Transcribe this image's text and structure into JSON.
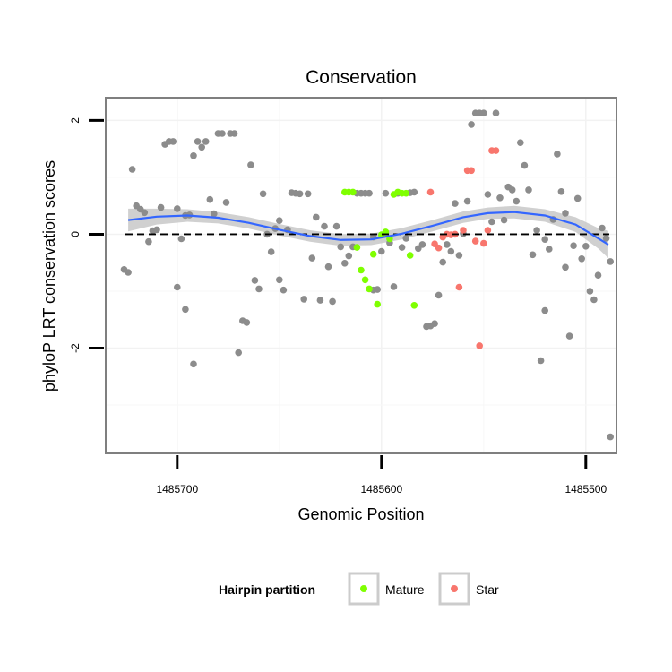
{
  "chart_data": {
    "type": "scatter",
    "title": "Conservation",
    "xlabel": "Genomic Position",
    "ylabel": "phyloP LRT conservation scores",
    "x_reversed": true,
    "xlim": [
      1485735,
      1485485
    ],
    "ylim": [
      -3.85,
      2.4
    ],
    "x_ticks": [
      1485700,
      1485600,
      1485500
    ],
    "x_tick_labels": [
      "1485700",
      "1485600",
      "1485500"
    ],
    "y_ticks": [
      -2,
      0,
      2
    ],
    "y_tick_labels": [
      "-2",
      "0",
      "2"
    ],
    "grid": true,
    "reference_line": {
      "y": 0,
      "style": "dashed",
      "color": "#000000"
    },
    "legend": {
      "title": "Hairpin partition",
      "placement": "bottom",
      "entries": [
        {
          "name": "Mature",
          "color": "#7FFF00"
        },
        {
          "name": "Star",
          "color": "#F8766D"
        }
      ]
    },
    "other_color": "#8C8C8C",
    "smooth": {
      "color": "#3366FF",
      "band_color": "#C8C8C8",
      "points": [
        [
          1485724,
          0.25
        ],
        [
          1485710,
          0.31
        ],
        [
          1485695,
          0.33
        ],
        [
          1485680,
          0.29
        ],
        [
          1485665,
          0.2
        ],
        [
          1485650,
          0.08
        ],
        [
          1485635,
          -0.03
        ],
        [
          1485620,
          -0.1
        ],
        [
          1485605,
          -0.09
        ],
        [
          1485590,
          0.01
        ],
        [
          1485575,
          0.15
        ],
        [
          1485560,
          0.3
        ],
        [
          1485548,
          0.37
        ],
        [
          1485535,
          0.39
        ],
        [
          1485520,
          0.33
        ],
        [
          1485505,
          0.17
        ],
        [
          1485494,
          -0.07
        ],
        [
          1485489,
          -0.18
        ]
      ],
      "band_halfwidth": [
        0.2,
        0.14,
        0.11,
        0.1,
        0.1,
        0.1,
        0.1,
        0.1,
        0.1,
        0.1,
        0.1,
        0.1,
        0.1,
        0.11,
        0.11,
        0.13,
        0.18,
        0.24
      ]
    },
    "series": [
      {
        "group": "Other",
        "points": [
          [
            1485726,
            -0.62
          ],
          [
            1485724,
            -0.67
          ],
          [
            1485722,
            1.14
          ],
          [
            1485720,
            0.5
          ],
          [
            1485718,
            0.44
          ],
          [
            1485716,
            0.38
          ],
          [
            1485714,
            -0.13
          ],
          [
            1485712,
            0.06
          ],
          [
            1485710,
            0.08
          ],
          [
            1485708,
            0.47
          ],
          [
            1485706,
            1.58
          ],
          [
            1485704,
            1.63
          ],
          [
            1485702,
            1.63
          ],
          [
            1485700,
            0.45
          ],
          [
            1485698,
            -0.08
          ],
          [
            1485696,
            0.33
          ],
          [
            1485694,
            0.34
          ],
          [
            1485692,
            1.38
          ],
          [
            1485690,
            1.63
          ],
          [
            1485688,
            1.53
          ],
          [
            1485686,
            1.63
          ],
          [
            1485684,
            0.61
          ],
          [
            1485682,
            0.36
          ],
          [
            1485680,
            1.77
          ],
          [
            1485678,
            1.77
          ],
          [
            1485676,
            0.56
          ],
          [
            1485674,
            1.77
          ],
          [
            1485672,
            1.77
          ],
          [
            1485670,
            -2.08
          ],
          [
            1485668,
            -1.52
          ],
          [
            1485666,
            -1.55
          ],
          [
            1485664,
            1.22
          ],
          [
            1485662,
            -0.81
          ],
          [
            1485660,
            -0.96
          ],
          [
            1485658,
            0.71
          ],
          [
            1485656,
            0.0
          ],
          [
            1485654,
            -0.31
          ],
          [
            1485652,
            0.1
          ],
          [
            1485650,
            -0.8
          ],
          [
            1485648,
            -0.98
          ],
          [
            1485646,
            0.08
          ],
          [
            1485644,
            0.73
          ],
          [
            1485642,
            0.72
          ],
          [
            1485640,
            0.71
          ],
          [
            1485638,
            -1.14
          ],
          [
            1485636,
            0.71
          ],
          [
            1485634,
            -0.42
          ],
          [
            1485632,
            0.3
          ],
          [
            1485630,
            -1.16
          ],
          [
            1485628,
            0.14
          ],
          [
            1485626,
            -0.57
          ],
          [
            1485624,
            -1.18
          ],
          [
            1485622,
            0.14
          ],
          [
            1485620,
            -0.22
          ],
          [
            1485618,
            -0.51
          ],
          [
            1485616,
            -0.38
          ],
          [
            1485614,
            -0.22
          ],
          [
            1485612,
            0.72
          ],
          [
            1485610,
            0.72
          ],
          [
            1485608,
            0.72
          ],
          [
            1485606,
            0.72
          ],
          [
            1485604,
            -0.98
          ],
          [
            1485602,
            -0.97
          ],
          [
            1485600,
            -0.3
          ],
          [
            1485598,
            0.72
          ],
          [
            1485596,
            -0.15
          ],
          [
            1485594,
            -0.92
          ],
          [
            1485592,
            0.72
          ],
          [
            1485590,
            -0.23
          ],
          [
            1485588,
            -0.07
          ],
          [
            1485586,
            0.73
          ],
          [
            1485584,
            0.74
          ],
          [
            1485582,
            -0.25
          ],
          [
            1485580,
            -0.18
          ],
          [
            1485578,
            -1.62
          ],
          [
            1485576,
            -1.61
          ],
          [
            1485574,
            -1.57
          ],
          [
            1485572,
            -1.07
          ],
          [
            1485570,
            -0.49
          ],
          [
            1485568,
            -0.18
          ],
          [
            1485566,
            -0.3
          ],
          [
            1485564,
            0.54
          ],
          [
            1485562,
            -0.37
          ],
          [
            1485560,
            0.01
          ],
          [
            1485558,
            0.58
          ],
          [
            1485556,
            1.93
          ],
          [
            1485554,
            2.13
          ],
          [
            1485552,
            2.13
          ],
          [
            1485550,
            2.13
          ],
          [
            1485548,
            0.7
          ],
          [
            1485546,
            0.22
          ],
          [
            1485544,
            2.13
          ],
          [
            1485542,
            0.64
          ],
          [
            1485540,
            0.25
          ],
          [
            1485538,
            0.83
          ],
          [
            1485536,
            0.78
          ],
          [
            1485534,
            0.58
          ],
          [
            1485532,
            1.61
          ],
          [
            1485530,
            1.21
          ],
          [
            1485528,
            0.78
          ],
          [
            1485526,
            -0.36
          ],
          [
            1485524,
            0.07
          ],
          [
            1485522,
            -2.22
          ],
          [
            1485520,
            -0.09
          ],
          [
            1485518,
            -0.26
          ],
          [
            1485516,
            0.26
          ],
          [
            1485514,
            1.41
          ],
          [
            1485512,
            0.75
          ],
          [
            1485510,
            -0.58
          ],
          [
            1485508,
            -1.79
          ],
          [
            1485506,
            -0.2
          ],
          [
            1485504,
            0.63
          ],
          [
            1485502,
            -0.43
          ],
          [
            1485500,
            -0.21
          ],
          [
            1485498,
            -1.0
          ],
          [
            1485496,
            -1.15
          ],
          [
            1485494,
            -0.72
          ],
          [
            1485492,
            0.11
          ],
          [
            1485490,
            -0.07
          ],
          [
            1485488,
            -0.48
          ],
          [
            1485510,
            0.37
          ],
          [
            1485700,
            -0.93
          ],
          [
            1485696,
            -1.32
          ],
          [
            1485692,
            -2.28
          ],
          [
            1485650,
            0.24
          ],
          [
            1485604,
            -0.05
          ],
          [
            1485520,
            -1.34
          ],
          [
            1485488,
            -3.56
          ]
        ]
      },
      {
        "group": "Mature",
        "points": [
          [
            1485618,
            0.74
          ],
          [
            1485616,
            0.74
          ],
          [
            1485614,
            0.74
          ],
          [
            1485612,
            -0.23
          ],
          [
            1485610,
            -0.63
          ],
          [
            1485608,
            -0.8
          ],
          [
            1485606,
            -0.96
          ],
          [
            1485604,
            -0.35
          ],
          [
            1485602,
            -1.23
          ],
          [
            1485600,
            -0.01
          ],
          [
            1485598,
            0.04
          ],
          [
            1485596,
            -0.08
          ],
          [
            1485594,
            0.7
          ],
          [
            1485592,
            0.74
          ],
          [
            1485590,
            0.72
          ],
          [
            1485588,
            0.72
          ],
          [
            1485586,
            -0.37
          ],
          [
            1485584,
            -1.25
          ]
        ]
      },
      {
        "group": "Star",
        "points": [
          [
            1485576,
            0.74
          ],
          [
            1485574,
            -0.17
          ],
          [
            1485572,
            -0.24
          ],
          [
            1485570,
            -0.05
          ],
          [
            1485568,
            0.0
          ],
          [
            1485566,
            -0.01
          ],
          [
            1485564,
            0.0
          ],
          [
            1485562,
            -0.93
          ],
          [
            1485560,
            0.07
          ],
          [
            1485558,
            1.12
          ],
          [
            1485556,
            1.12
          ],
          [
            1485554,
            -0.12
          ],
          [
            1485552,
            -1.96
          ],
          [
            1485550,
            -0.16
          ],
          [
            1485548,
            0.07
          ],
          [
            1485546,
            1.47
          ],
          [
            1485544,
            1.47
          ]
        ]
      }
    ]
  }
}
